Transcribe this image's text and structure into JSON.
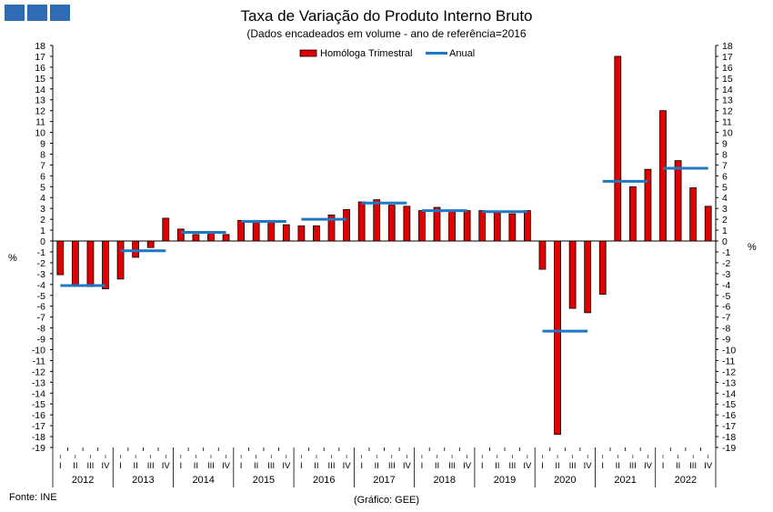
{
  "header": {
    "title": "Taxa de Variação do Produto Interno Bruto",
    "subtitle": "(Dados encadeados em volume  - ano de referência=2016"
  },
  "footer": {
    "source": "Fonte: INE",
    "credit": "(Gráfico: GEE)"
  },
  "colors": {
    "bar_fill": "#e00000",
    "bar_stroke": "#000000",
    "line": "#1f78c1",
    "logo": "#2e6db3"
  },
  "chart_data": {
    "type": "bar",
    "ylim": [
      -19,
      18
    ],
    "ylabel_left": "%",
    "ylabel_right": "%",
    "grid": false,
    "legend": {
      "placement": "top-center",
      "entries": [
        "Homóloga Trimestral",
        "Anual"
      ]
    },
    "years": [
      "2012",
      "2013",
      "2014",
      "2015",
      "2016",
      "2017",
      "2018",
      "2019",
      "2020",
      "2021",
      "2022"
    ],
    "quarter_labels": [
      "I",
      "II",
      "III",
      "IV"
    ],
    "series": [
      {
        "name": "Homóloga Trimestral",
        "kind": "bar",
        "values": [
          -3.1,
          -4.0,
          -4.2,
          -4.4,
          -3.5,
          -1.5,
          -0.6,
          2.1,
          1.1,
          0.6,
          0.8,
          0.6,
          1.9,
          1.9,
          1.9,
          1.5,
          1.4,
          1.4,
          2.4,
          2.9,
          3.6,
          3.8,
          3.3,
          3.2,
          2.8,
          3.1,
          2.8,
          2.8,
          2.8,
          2.6,
          2.5,
          2.8,
          -2.6,
          -17.8,
          -6.2,
          -6.6,
          -4.9,
          17.0,
          5.0,
          6.6,
          12.0,
          7.4,
          4.9,
          3.2
        ]
      },
      {
        "name": "Anual",
        "kind": "step-line",
        "values": [
          -4.1,
          -0.9,
          0.8,
          1.8,
          2.0,
          3.5,
          2.8,
          2.7,
          -8.3,
          5.5,
          6.7
        ]
      }
    ]
  }
}
